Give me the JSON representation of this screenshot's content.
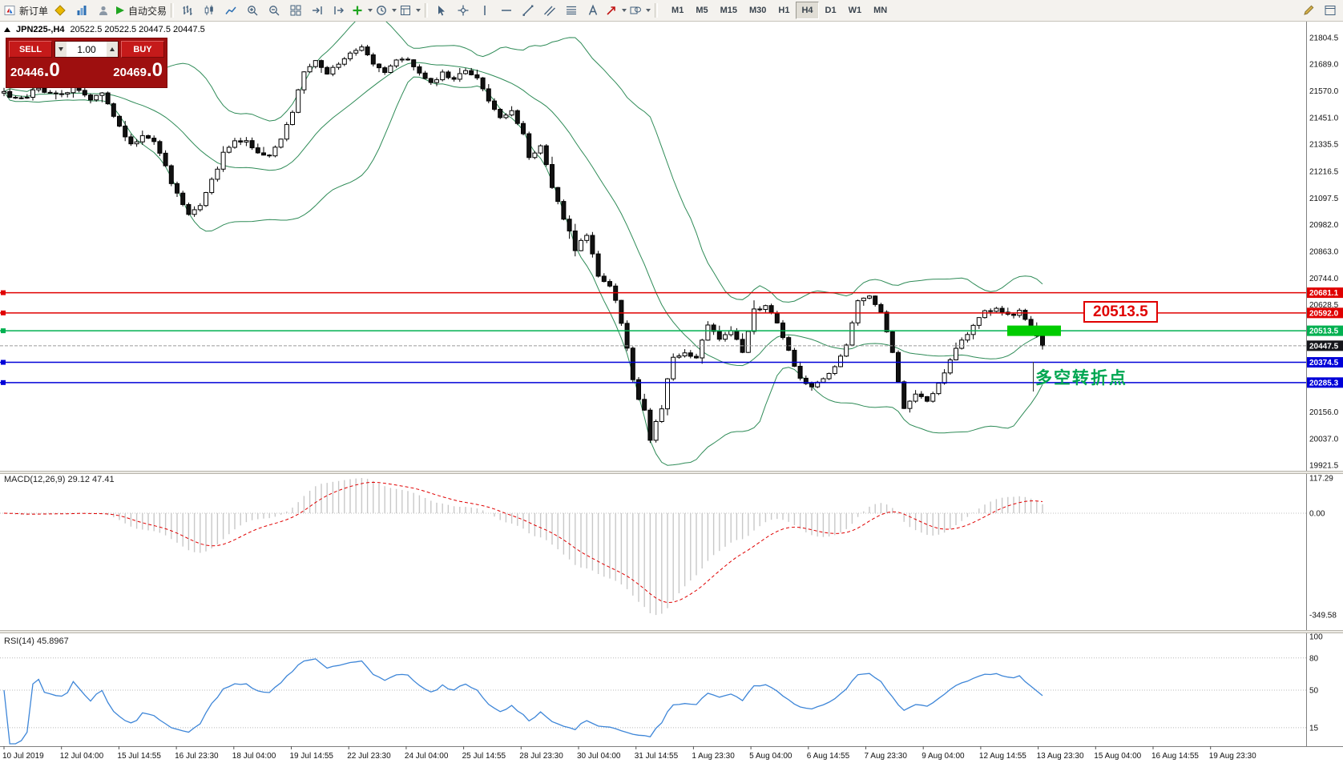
{
  "toolbar": {
    "new_order_label": "新订单",
    "autotrading_label": "自动交易",
    "timeframes": [
      "M1",
      "M5",
      "M15",
      "M30",
      "H1",
      "H4",
      "D1",
      "W1",
      "MN"
    ],
    "active_timeframe": "H4"
  },
  "symbol_info": {
    "symbol": "JPN225-,H4",
    "ohlc": "20522.5 20522.5 20447.5 20447.5"
  },
  "quote": {
    "sell_label": "SELL",
    "buy_label": "BUY",
    "lot": "1.00",
    "sell_main": "20446",
    "sell_pip": ".0",
    "buy_main": "20469",
    "buy_pip": ".0"
  },
  "colors": {
    "bollinger": "#2e8b57",
    "bull": "#ffffff",
    "bear": "#111111"
  },
  "chart": {
    "scale": {
      "top": 21804.5,
      "bottom": 19921.5
    },
    "price_axis": {
      "labels": [
        "21804.5",
        "21689.0",
        "21570.0",
        "21451.0",
        "21335.5",
        "21216.5",
        "21097.5",
        "20982.0",
        "20863.0",
        "20744.0",
        "20628.5",
        "20156.0",
        "20037.0",
        "19921.5"
      ]
    },
    "lines": [
      {
        "price": 20681.1,
        "label": "20681.1",
        "color": "#e00000"
      },
      {
        "price": 20592.0,
        "label": "20592.0",
        "color": "#e00000"
      },
      {
        "price": 20513.5,
        "label": "20513.5",
        "color": "#00b050"
      },
      {
        "price": 20374.5,
        "label": "20374.5",
        "color": "#0000d8"
      },
      {
        "price": 20285.3,
        "label": "20285.3",
        "color": "#0000d8"
      }
    ],
    "current_price": {
      "price": 20447.5,
      "label": "20447.5",
      "color": "#15161b"
    },
    "annotations": {
      "callout_label": "20513.5",
      "note": "多空转折点",
      "highlight": {
        "price": 20513.5,
        "color": "#00cc00"
      }
    },
    "candles_total": 181,
    "price_path_anchors": [
      [
        0,
        21560
      ],
      [
        3,
        21530
      ],
      [
        6,
        21585
      ],
      [
        9,
        21545
      ],
      [
        12,
        21590
      ],
      [
        15,
        21540
      ],
      [
        17,
        21560
      ],
      [
        19,
        21460
      ],
      [
        22,
        21330
      ],
      [
        24,
        21380
      ],
      [
        26,
        21340
      ],
      [
        28,
        21230
      ],
      [
        30,
        21110
      ],
      [
        32,
        21020
      ],
      [
        34,
        21060
      ],
      [
        36,
        21180
      ],
      [
        38,
        21290
      ],
      [
        40,
        21340
      ],
      [
        42,
        21360
      ],
      [
        44,
        21300
      ],
      [
        46,
        21280
      ],
      [
        48,
        21360
      ],
      [
        50,
        21480
      ],
      [
        52,
        21660
      ],
      [
        54,
        21700
      ],
      [
        56,
        21640
      ],
      [
        58,
        21690
      ],
      [
        60,
        21740
      ],
      [
        62,
        21755
      ],
      [
        64,
        21690
      ],
      [
        66,
        21650
      ],
      [
        68,
        21700
      ],
      [
        70,
        21715
      ],
      [
        72,
        21640
      ],
      [
        74,
        21600
      ],
      [
        76,
        21650
      ],
      [
        78,
        21620
      ],
      [
        80,
        21660
      ],
      [
        82,
        21630
      ],
      [
        84,
        21520
      ],
      [
        86,
        21450
      ],
      [
        88,
        21480
      ],
      [
        90,
        21380
      ],
      [
        91,
        21280
      ],
      [
        93,
        21320
      ],
      [
        95,
        21150
      ],
      [
        97,
        21000
      ],
      [
        99,
        20880
      ],
      [
        101,
        20920
      ],
      [
        103,
        20760
      ],
      [
        105,
        20720
      ],
      [
        107,
        20550
      ],
      [
        109,
        20300
      ],
      [
        111,
        20150
      ],
      [
        112,
        20020
      ],
      [
        113,
        20100
      ],
      [
        114,
        20180
      ],
      [
        116,
        20400
      ],
      [
        118,
        20430
      ],
      [
        120,
        20380
      ],
      [
        122,
        20550
      ],
      [
        124,
        20480
      ],
      [
        126,
        20510
      ],
      [
        128,
        20420
      ],
      [
        130,
        20600
      ],
      [
        132,
        20630
      ],
      [
        134,
        20540
      ],
      [
        136,
        20420
      ],
      [
        138,
        20310
      ],
      [
        140,
        20260
      ],
      [
        142,
        20300
      ],
      [
        144,
        20350
      ],
      [
        146,
        20450
      ],
      [
        148,
        20650
      ],
      [
        150,
        20665
      ],
      [
        152,
        20590
      ],
      [
        154,
        20410
      ],
      [
        156,
        20180
      ],
      [
        158,
        20230
      ],
      [
        160,
        20200
      ],
      [
        162,
        20280
      ],
      [
        164,
        20390
      ],
      [
        166,
        20470
      ],
      [
        168,
        20540
      ],
      [
        170,
        20600
      ],
      [
        172,
        20610
      ],
      [
        174,
        20580
      ],
      [
        176,
        20600
      ],
      [
        178,
        20530
      ],
      [
        180,
        20447.5
      ]
    ]
  },
  "macd": {
    "label": "MACD(12,26,9) 29.12 47.41",
    "axis_labels": [
      "117.29",
      "0.00",
      "-349.58"
    ],
    "histogram_color": "#c8c8c8",
    "signal_color": "#e00000"
  },
  "rsi": {
    "label": "RSI(14) 45.8967",
    "axis_labels": [
      "100",
      "80",
      "50",
      "15"
    ],
    "line_color": "#3e86d8"
  },
  "time_axis": {
    "labels": [
      "10 Jul 2019",
      "12 Jul 04:00",
      "15 Jul 14:55",
      "16 Jul 23:30",
      "18 Jul 04:00",
      "19 Jul 14:55",
      "22 Jul 23:30",
      "24 Jul 04:00",
      "25 Jul 14:55",
      "28 Jul 23:30",
      "30 Jul 04:00",
      "31 Jul 14:55",
      "1 Aug 23:30",
      "5 Aug 04:00",
      "6 Aug 14:55",
      "7 Aug 23:30",
      "9 Aug 04:00",
      "12 Aug 14:55",
      "13 Aug 23:30",
      "15 Aug 04:00",
      "16 Aug 14:55",
      "19 Aug 23:30"
    ]
  }
}
